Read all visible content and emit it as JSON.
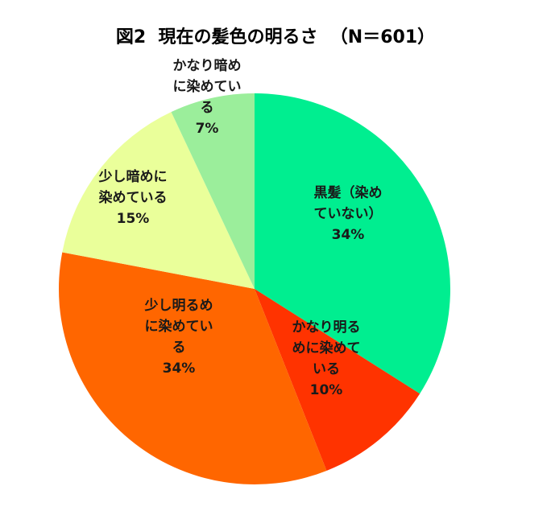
{
  "chart_data": {
    "type": "pie",
    "title": "図2  現在の髪色の明るさ  （N＝601）",
    "categories": [
      "黒髪（染めていない）",
      "かなり明るめに染めている",
      "少し明るめに染めている",
      "少し暗めに染めている",
      "かなり暗めに染めている"
    ],
    "values": [
      34,
      10,
      34,
      15,
      7
    ],
    "unit": "%",
    "colors": [
      "#00ee90",
      "#ff3300",
      "#ff6600",
      "#eaff9a",
      "#9bee9b"
    ],
    "slices": [
      {
        "name": "黒髪（染めていない）",
        "label_lines": [
          "黒髪（染め",
          "ていない）"
        ],
        "value_label": "34%"
      },
      {
        "name": "かなり明るめに染めている",
        "label_lines": [
          "かなり明る",
          "めに染めて",
          "いる"
        ],
        "value_label": "10%"
      },
      {
        "name": "少し明るめに染めている",
        "label_lines": [
          "少し明るめ",
          "に染めてい",
          "る"
        ],
        "value_label": "34%"
      },
      {
        "name": "少し暗めに染めている",
        "label_lines": [
          "少し暗めに",
          "染めている"
        ],
        "value_label": "15%"
      },
      {
        "name": "かなり暗めに染めている",
        "label_lines": [
          "かなり暗め",
          "に染めてい",
          "る"
        ],
        "value_label": "7%"
      }
    ],
    "start_angle_deg": 0,
    "direction": "clockwise",
    "legend": "none"
  }
}
